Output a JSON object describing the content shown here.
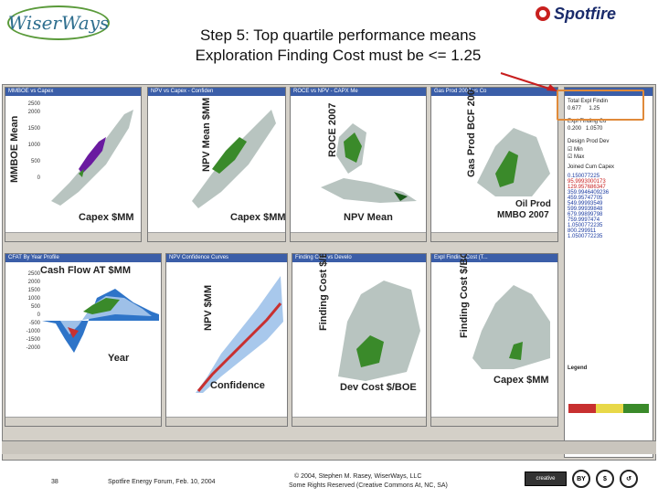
{
  "header": {
    "logo_left": "WiserWays",
    "logo_right": "Spotfire",
    "headline_line1": "Step 5: Top quartile performance means",
    "headline_line2": "Exploration Finding Cost must be <= 1.25"
  },
  "panels": {
    "p1": {
      "title": "MMBOE vs Capex",
      "ylabel": "MMBOE Mean",
      "xlabel": "Capex $MM",
      "yticks": [
        "2500",
        "2000",
        "1500",
        "1000",
        "500",
        "0"
      ]
    },
    "p2": {
      "title": "NPV vs Capex - Confiden",
      "ylabel": "NPV Mean $MM",
      "xlabel": "Capex $MM"
    },
    "p3": {
      "title": "ROCE vs NPV - CAPX Me",
      "ylabel": "ROCE 2007",
      "xlabel": "NPV Mean"
    },
    "p4": {
      "title": "Gas Prod 2007 vs Co",
      "ylabel": "Gas Prod BCF 2007",
      "xlabel_line1": "Oil Prod",
      "xlabel_line2": "MMBO 2007"
    },
    "p5": {
      "title": "CFAT By Year Profile",
      "ylabel": "Cash Flow AT $MM",
      "xlabel": "Year",
      "yticks": [
        "2500",
        "2000",
        "1500",
        "1000",
        "500",
        "0",
        "-500",
        "-1000",
        "-1500",
        "-2000"
      ]
    },
    "p6": {
      "title": "NPV Confidence Curves",
      "ylabel": "NPV $MM",
      "xlabel": "Confidence"
    },
    "p7": {
      "title": "Finding Cost vs Develo",
      "ylabel": "Finding Cost $/BOE",
      "xlabel": "Dev Cost $/BOE"
    },
    "p8": {
      "title": "Expl Finding Cost (T...",
      "ylabel": "Finding Cost $/BOE",
      "xlabel": "Capex $MM"
    }
  },
  "filters": {
    "f1_label": "Total Expl Findin",
    "f1_range": [
      "0.677",
      "1.25"
    ],
    "f2_label": "Expl Finding Co",
    "f2_range": [
      "0.200",
      "1.0570"
    ],
    "f3_label": "Design Prod Dev",
    "f3_options": [
      "Min",
      "Max"
    ],
    "f4_label": "Joined Cum Capex",
    "legend_label": "Legend",
    "list_values": [
      "0.150077225",
      "95.9993000173",
      "129.957686347",
      "359.9946409236",
      "459.95747705",
      "549.99993549",
      "599.99939848",
      "679.99899798",
      "759.9997474",
      "1.0500772235",
      "800.299911",
      "1.0500772235"
    ]
  },
  "footer": {
    "slide_number": "38",
    "event": "Spotfire Energy Forum, Feb. 10, 2004",
    "copyright_line1": "© 2004, Stephen M. Rasey, WiserWays, LLC",
    "copyright_line2": "Some Rights Reserved (Creative Commons At, NC, SA)",
    "cc_badge": "creative commons"
  },
  "colors": {
    "accent": "#e08a3a",
    "titlebar": "#3b5ea8",
    "scatter_green": "#3a8a2a",
    "scatter_purple": "#6a1aa0",
    "scatter_gray": "#b8c4c0"
  }
}
